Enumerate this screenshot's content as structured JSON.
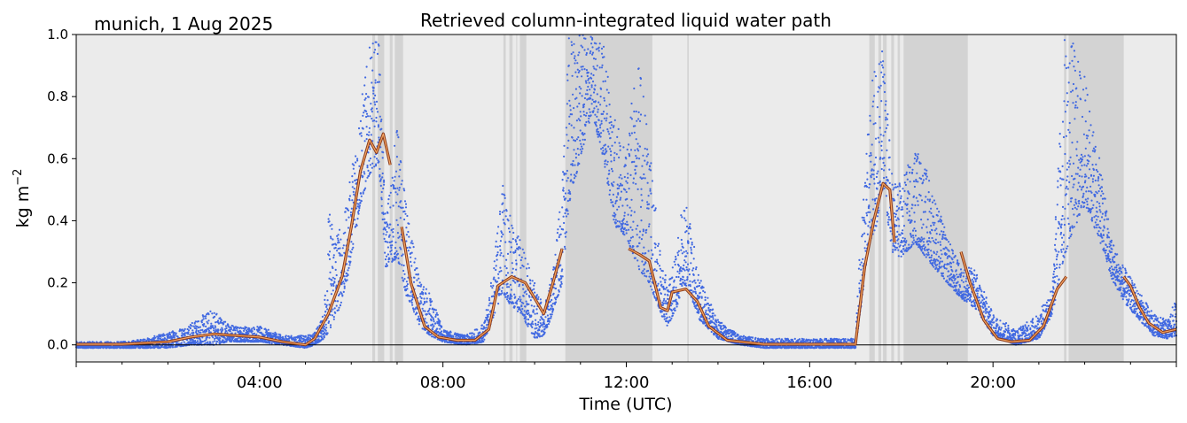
{
  "chart_data": {
    "type": "scatter",
    "title": "Retrieved column-integrated liquid water path",
    "subtitle": "munich, 1 Aug 2025",
    "xlabel": "Time (UTC)",
    "ylabel_main": "kg m",
    "ylabel_sup": "−2",
    "xlim_hours": [
      0,
      24
    ],
    "ylim": [
      -0.055,
      1.0
    ],
    "x_ticks": [
      {
        "value": 4,
        "label": "04:00"
      },
      {
        "value": 8,
        "label": "08:00"
      },
      {
        "value": 12,
        "label": "12:00"
      },
      {
        "value": 16,
        "label": "16:00"
      },
      {
        "value": 20,
        "label": "20:00"
      }
    ],
    "y_ticks": [
      {
        "value": 0.0,
        "label": "0.0"
      },
      {
        "value": 0.2,
        "label": "0.2"
      },
      {
        "value": 0.4,
        "label": "0.4"
      },
      {
        "value": 0.6,
        "label": "0.6"
      },
      {
        "value": 0.8,
        "label": "0.8"
      },
      {
        "value": 1.0,
        "label": "1.0"
      }
    ],
    "grid": false,
    "zero_line": true,
    "colors": {
      "background": "#ebebeb",
      "flagged_band": "#d3d3d3",
      "points": "#4169e1",
      "smooth_line": "#c0622f",
      "smooth_line_edge": "#8b3a1a",
      "zero_line": "#000000"
    },
    "flagged_periods_hours": [
      [
        6.46,
        6.52
      ],
      [
        6.58,
        6.72
      ],
      [
        6.84,
        6.9
      ],
      [
        6.95,
        7.13
      ],
      [
        9.32,
        9.37
      ],
      [
        9.45,
        9.52
      ],
      [
        9.6,
        9.62
      ],
      [
        9.68,
        9.82
      ],
      [
        10.67,
        12.57
      ],
      [
        13.33,
        13.36
      ],
      [
        17.3,
        17.42
      ],
      [
        17.5,
        17.56
      ],
      [
        17.6,
        17.68
      ],
      [
        17.78,
        17.84
      ],
      [
        17.92,
        17.97
      ],
      [
        18.05,
        19.45
      ],
      [
        21.55,
        21.6
      ],
      [
        21.65,
        22.85
      ]
    ],
    "measurement_envelope": [
      [
        0.0,
        -0.01,
        0.01
      ],
      [
        0.5,
        -0.01,
        0.01
      ],
      [
        1.0,
        -0.01,
        0.01
      ],
      [
        1.5,
        -0.01,
        0.02
      ],
      [
        2.0,
        -0.01,
        0.04
      ],
      [
        2.5,
        0.0,
        0.07
      ],
      [
        3.0,
        0.0,
        0.12
      ],
      [
        3.3,
        0.01,
        0.07
      ],
      [
        3.5,
        0.01,
        0.06
      ],
      [
        4.0,
        0.01,
        0.06
      ],
      [
        4.5,
        0.0,
        0.03
      ],
      [
        5.0,
        -0.01,
        0.03
      ],
      [
        5.2,
        0.0,
        0.04
      ],
      [
        5.4,
        0.02,
        0.1
      ],
      [
        5.5,
        0.04,
        0.44
      ],
      [
        5.75,
        0.12,
        0.38
      ],
      [
        5.9,
        0.2,
        0.45
      ],
      [
        6.0,
        0.28,
        0.57
      ],
      [
        6.2,
        0.45,
        0.78
      ],
      [
        6.4,
        0.55,
        0.96
      ],
      [
        6.6,
        0.59,
        1.0
      ],
      [
        6.75,
        0.25,
        0.4
      ],
      [
        7.0,
        0.28,
        0.72
      ],
      [
        7.2,
        0.16,
        0.45
      ],
      [
        7.5,
        0.06,
        0.2
      ],
      [
        7.7,
        0.03,
        0.18
      ],
      [
        8.0,
        0.01,
        0.05
      ],
      [
        8.5,
        0.0,
        0.03
      ],
      [
        8.9,
        0.01,
        0.07
      ],
      [
        9.1,
        0.09,
        0.25
      ],
      [
        9.3,
        0.17,
        0.55
      ],
      [
        9.5,
        0.12,
        0.39
      ],
      [
        9.7,
        0.1,
        0.35
      ],
      [
        10.0,
        0.02,
        0.2
      ],
      [
        10.2,
        0.03,
        0.12
      ],
      [
        10.4,
        0.1,
        0.24
      ],
      [
        10.6,
        0.2,
        0.5
      ],
      [
        10.75,
        0.45,
        1.0
      ],
      [
        11.0,
        0.6,
        1.0
      ],
      [
        11.25,
        0.75,
        1.0
      ],
      [
        11.5,
        0.6,
        0.98
      ],
      [
        11.75,
        0.38,
        0.76
      ],
      [
        12.0,
        0.35,
        0.6
      ],
      [
        12.25,
        0.25,
        1.0
      ],
      [
        12.5,
        0.2,
        0.65
      ],
      [
        12.75,
        0.1,
        0.28
      ],
      [
        12.9,
        0.06,
        0.2
      ],
      [
        13.1,
        0.12,
        0.3
      ],
      [
        13.25,
        0.2,
        0.52
      ],
      [
        13.4,
        0.16,
        0.4
      ],
      [
        13.6,
        0.08,
        0.22
      ],
      [
        14.0,
        0.02,
        0.08
      ],
      [
        14.5,
        0.0,
        0.03
      ],
      [
        15.0,
        -0.01,
        0.02
      ],
      [
        16.0,
        -0.01,
        0.02
      ],
      [
        17.0,
        -0.01,
        0.02
      ],
      [
        17.1,
        0.1,
        0.33
      ],
      [
        17.3,
        0.33,
        0.75
      ],
      [
        17.45,
        0.38,
        0.98
      ],
      [
        17.6,
        0.5,
        0.96
      ],
      [
        17.8,
        0.3,
        0.55
      ],
      [
        18.0,
        0.28,
        0.52
      ],
      [
        18.3,
        0.33,
        0.65
      ],
      [
        18.6,
        0.27,
        0.55
      ],
      [
        19.0,
        0.2,
        0.35
      ],
      [
        19.3,
        0.15,
        0.25
      ],
      [
        19.6,
        0.12,
        0.25
      ],
      [
        20.0,
        0.03,
        0.1
      ],
      [
        20.5,
        0.0,
        0.05
      ],
      [
        21.0,
        0.02,
        0.1
      ],
      [
        21.3,
        0.1,
        0.2
      ],
      [
        21.55,
        0.28,
        1.0
      ],
      [
        21.7,
        0.35,
        1.0
      ],
      [
        22.0,
        0.45,
        0.87
      ],
      [
        22.3,
        0.35,
        0.62
      ],
      [
        22.6,
        0.21,
        0.34
      ],
      [
        22.9,
        0.13,
        0.24
      ],
      [
        23.2,
        0.08,
        0.17
      ],
      [
        23.5,
        0.03,
        0.1
      ],
      [
        23.8,
        0.02,
        0.08
      ],
      [
        24.0,
        0.03,
        0.15
      ]
    ],
    "smoothed_segments": [
      [
        [
          0.0,
          0.002
        ],
        [
          1.0,
          0.002
        ],
        [
          2.0,
          0.01
        ],
        [
          2.5,
          0.025
        ],
        [
          3.0,
          0.035
        ],
        [
          3.5,
          0.03
        ],
        [
          4.0,
          0.025
        ],
        [
          4.5,
          0.01
        ],
        [
          5.0,
          0.0
        ],
        [
          5.2,
          0.02
        ],
        [
          5.5,
          0.1
        ],
        [
          5.8,
          0.22
        ],
        [
          6.0,
          0.38
        ],
        [
          6.2,
          0.56
        ],
        [
          6.4,
          0.66
        ],
        [
          6.55,
          0.62
        ],
        [
          6.7,
          0.68
        ],
        [
          6.85,
          0.58
        ]
      ],
      [
        [
          7.1,
          0.38
        ],
        [
          7.3,
          0.2
        ],
        [
          7.6,
          0.06
        ],
        [
          7.9,
          0.025
        ],
        [
          8.3,
          0.015
        ],
        [
          8.7,
          0.015
        ],
        [
          9.0,
          0.05
        ],
        [
          9.2,
          0.19
        ],
        [
          9.5,
          0.22
        ],
        [
          9.8,
          0.2
        ],
        [
          10.0,
          0.15
        ],
        [
          10.2,
          0.1
        ],
        [
          10.4,
          0.2
        ],
        [
          10.6,
          0.31
        ]
      ],
      [
        [
          12.05,
          0.31
        ],
        [
          12.3,
          0.29
        ],
        [
          12.5,
          0.27
        ],
        [
          12.75,
          0.12
        ],
        [
          12.9,
          0.11
        ],
        [
          13.0,
          0.17
        ],
        [
          13.3,
          0.18
        ],
        [
          13.55,
          0.14
        ],
        [
          13.8,
          0.06
        ],
        [
          14.2,
          0.015
        ],
        [
          15.0,
          0.002
        ],
        [
          16.0,
          0.002
        ],
        [
          17.0,
          0.002
        ],
        [
          17.2,
          0.25
        ],
        [
          17.4,
          0.4
        ],
        [
          17.6,
          0.52
        ],
        [
          17.75,
          0.5
        ],
        [
          17.85,
          0.33
        ]
      ],
      [
        [
          19.3,
          0.3
        ],
        [
          19.5,
          0.2
        ],
        [
          19.8,
          0.08
        ],
        [
          20.1,
          0.02
        ],
        [
          20.4,
          0.01
        ],
        [
          20.8,
          0.015
        ],
        [
          21.1,
          0.06
        ],
        [
          21.4,
          0.18
        ],
        [
          21.6,
          0.22
        ]
      ],
      [
        [
          22.85,
          0.22
        ],
        [
          23.0,
          0.19
        ],
        [
          23.2,
          0.12
        ],
        [
          23.4,
          0.07
        ],
        [
          23.7,
          0.04
        ],
        [
          24.0,
          0.05
        ]
      ]
    ]
  }
}
